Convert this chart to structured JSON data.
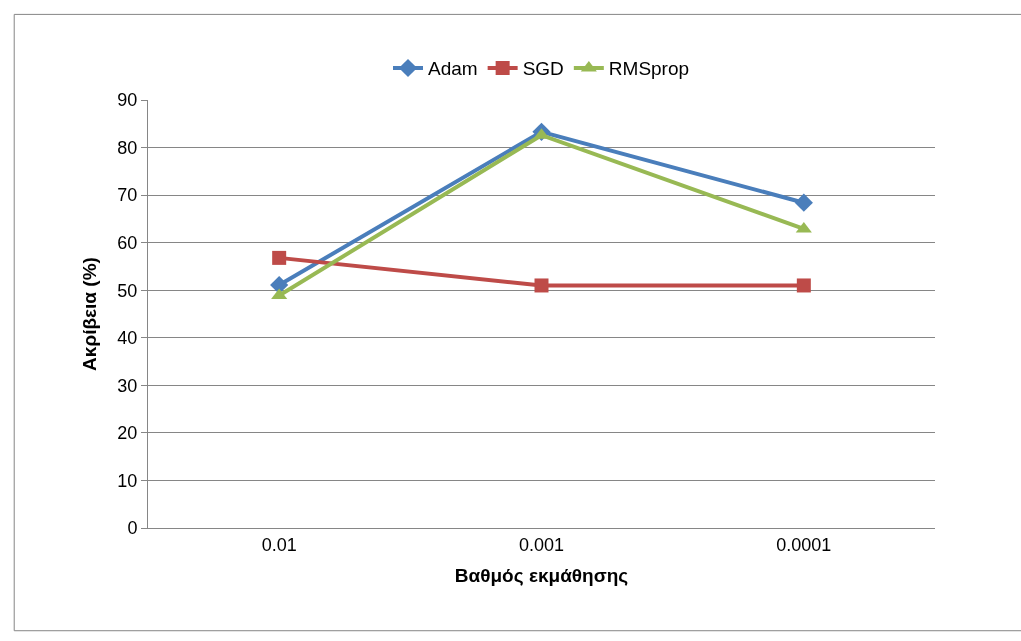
{
  "chart_data": {
    "type": "line",
    "xlabel": "Βαθμός εκμάθησης",
    "ylabel": "Ακρίβεια (%)",
    "categories": [
      "0.01",
      "0.001",
      "0.0001"
    ],
    "series": [
      {
        "name": "Adam",
        "color": "#4a7ebb",
        "values": [
          51.1,
          83.3,
          68.4
        ],
        "marker": "diamond"
      },
      {
        "name": "SGD",
        "color": "#be4b48",
        "values": [
          56.8,
          51,
          51
        ],
        "marker": "square"
      },
      {
        "name": "RMSprop",
        "color": "#98b954",
        "values": [
          48.9,
          82.6,
          62.9
        ],
        "marker": "triangle"
      }
    ],
    "ylim": [
      0,
      90
    ],
    "yticks": [
      0,
      10,
      20,
      30,
      40,
      50,
      60,
      70,
      80,
      90
    ],
    "grid": "y",
    "legend": "top",
    "line_style": "solid"
  }
}
